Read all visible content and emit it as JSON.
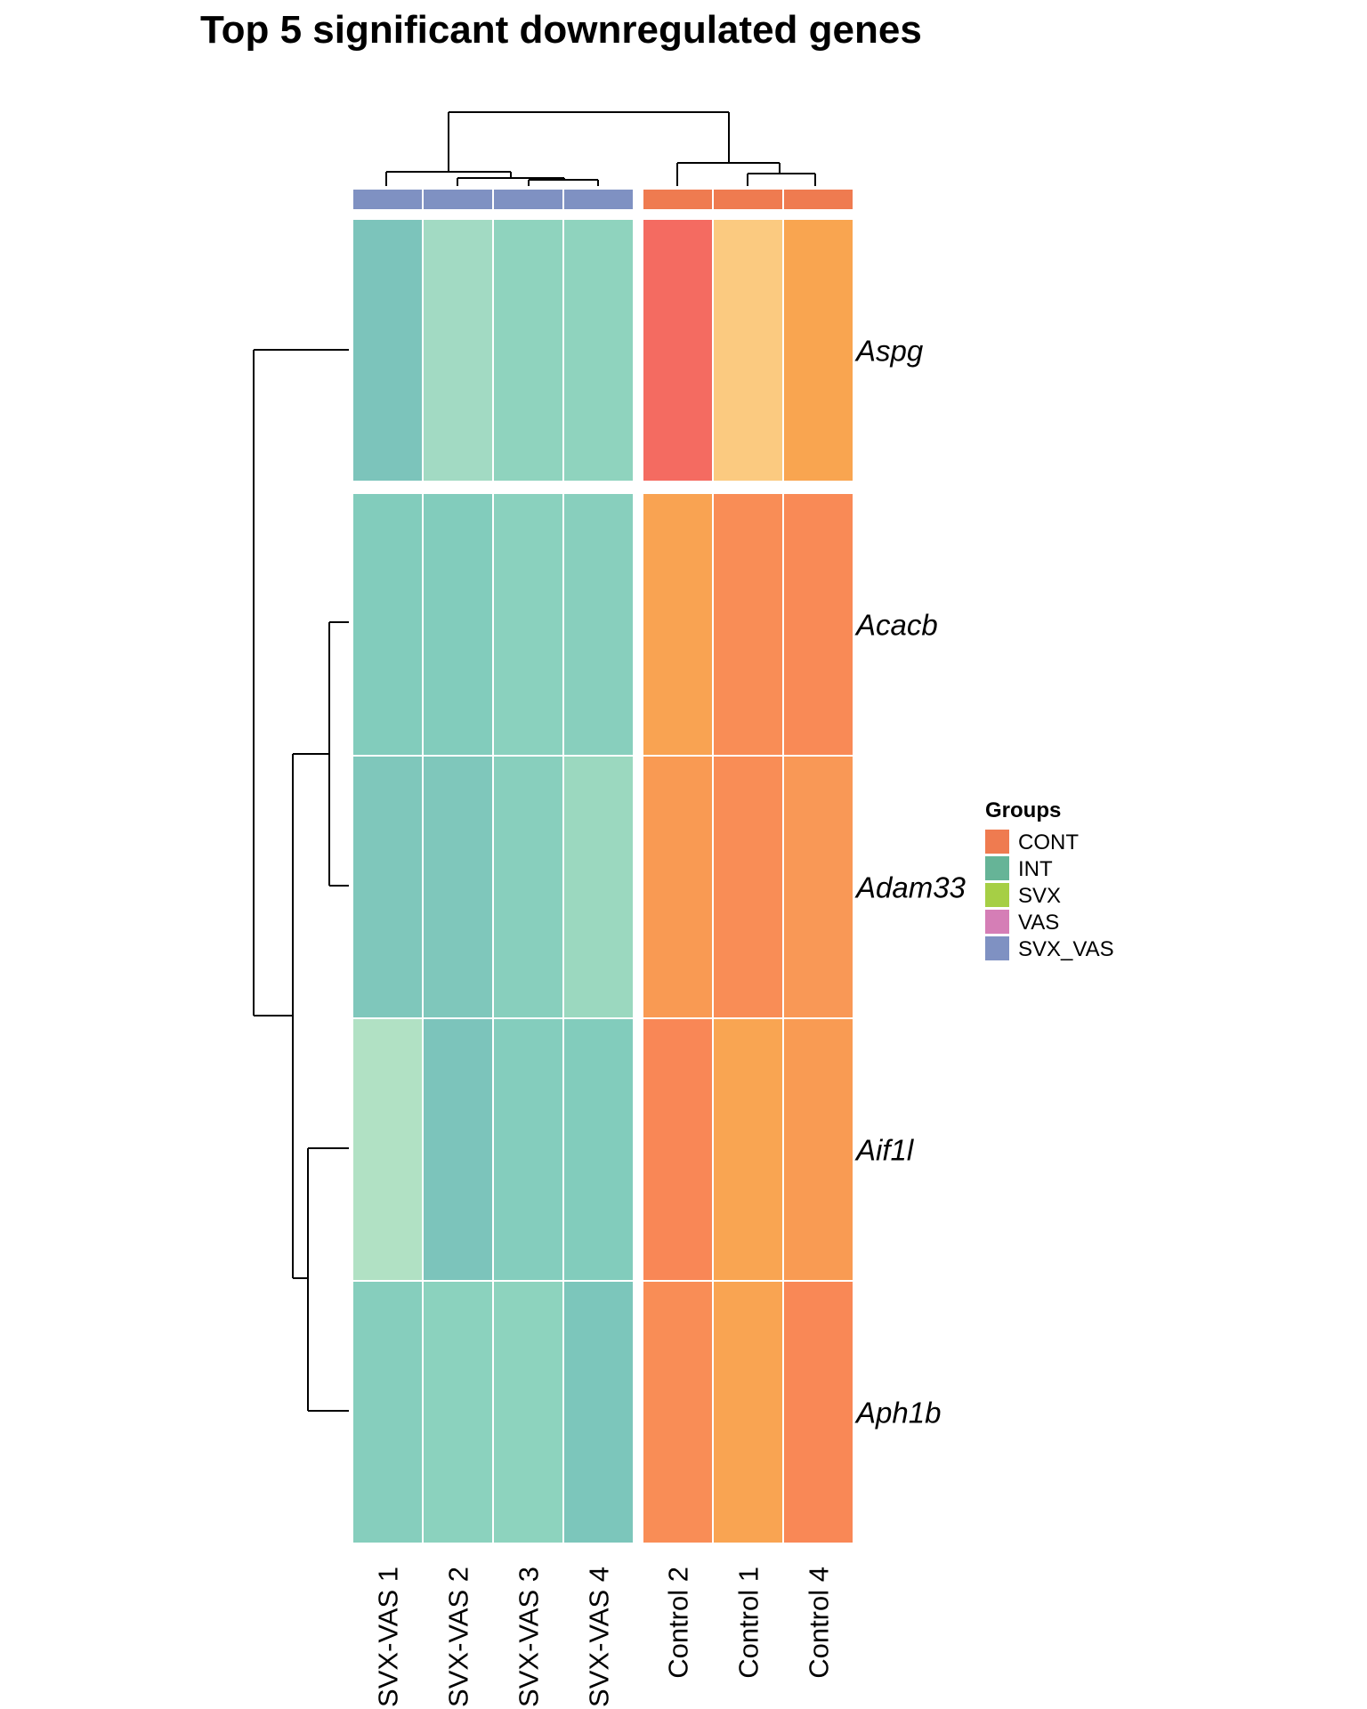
{
  "chart_data": {
    "type": "heatmap",
    "title": "Top 5 significant downregulated genes",
    "columns": [
      "SVX-VAS 1",
      "SVX-VAS 2",
      "SVX-VAS 3",
      "SVX-VAS 4",
      "Control 2",
      "Control 1",
      "Control 4"
    ],
    "column_groups": [
      "SVX_VAS",
      "SVX_VAS",
      "SVX_VAS",
      "SVX_VAS",
      "CONT",
      "CONT",
      "CONT"
    ],
    "column_split": [
      4,
      3
    ],
    "rows": [
      "Aspg",
      "Acacb",
      "Adam33",
      "Aif1l",
      "Aph1b"
    ],
    "row_split": [
      1,
      4
    ],
    "cell_colors": [
      [
        "#7cc4bb",
        "#a2dac3",
        "#8fd3be",
        "#8fd3be",
        "#f46b61",
        "#fbca80",
        "#f9a550"
      ],
      [
        "#82ccbc",
        "#82ccbc",
        "#8ad1be",
        "#88cfbd",
        "#f9a352",
        "#f98d56",
        "#f98a56"
      ],
      [
        "#7fc7bb",
        "#7fc7bb",
        "#88cfbd",
        "#9bd8bf",
        "#f99a53",
        "#f98d56",
        "#f99856"
      ],
      [
        "#b1e1c4",
        "#7cc4bb",
        "#84cdbd",
        "#82ccbc",
        "#f98756",
        "#f9a552",
        "#f99b53"
      ],
      [
        "#86cebd",
        "#8bd2be",
        "#8dd3be",
        "#7cc6bb",
        "#f98d56",
        "#f9a452",
        "#f98856"
      ]
    ],
    "legend": {
      "title": "Groups",
      "items": [
        {
          "label": "CONT",
          "color": "#ef7b50"
        },
        {
          "label": "INT",
          "color": "#66b497"
        },
        {
          "label": "SVX",
          "color": "#a6cf45"
        },
        {
          "label": "VAS",
          "color": "#d57eb6"
        },
        {
          "label": "SVX_VAS",
          "color": "#7f91c2"
        }
      ]
    }
  }
}
